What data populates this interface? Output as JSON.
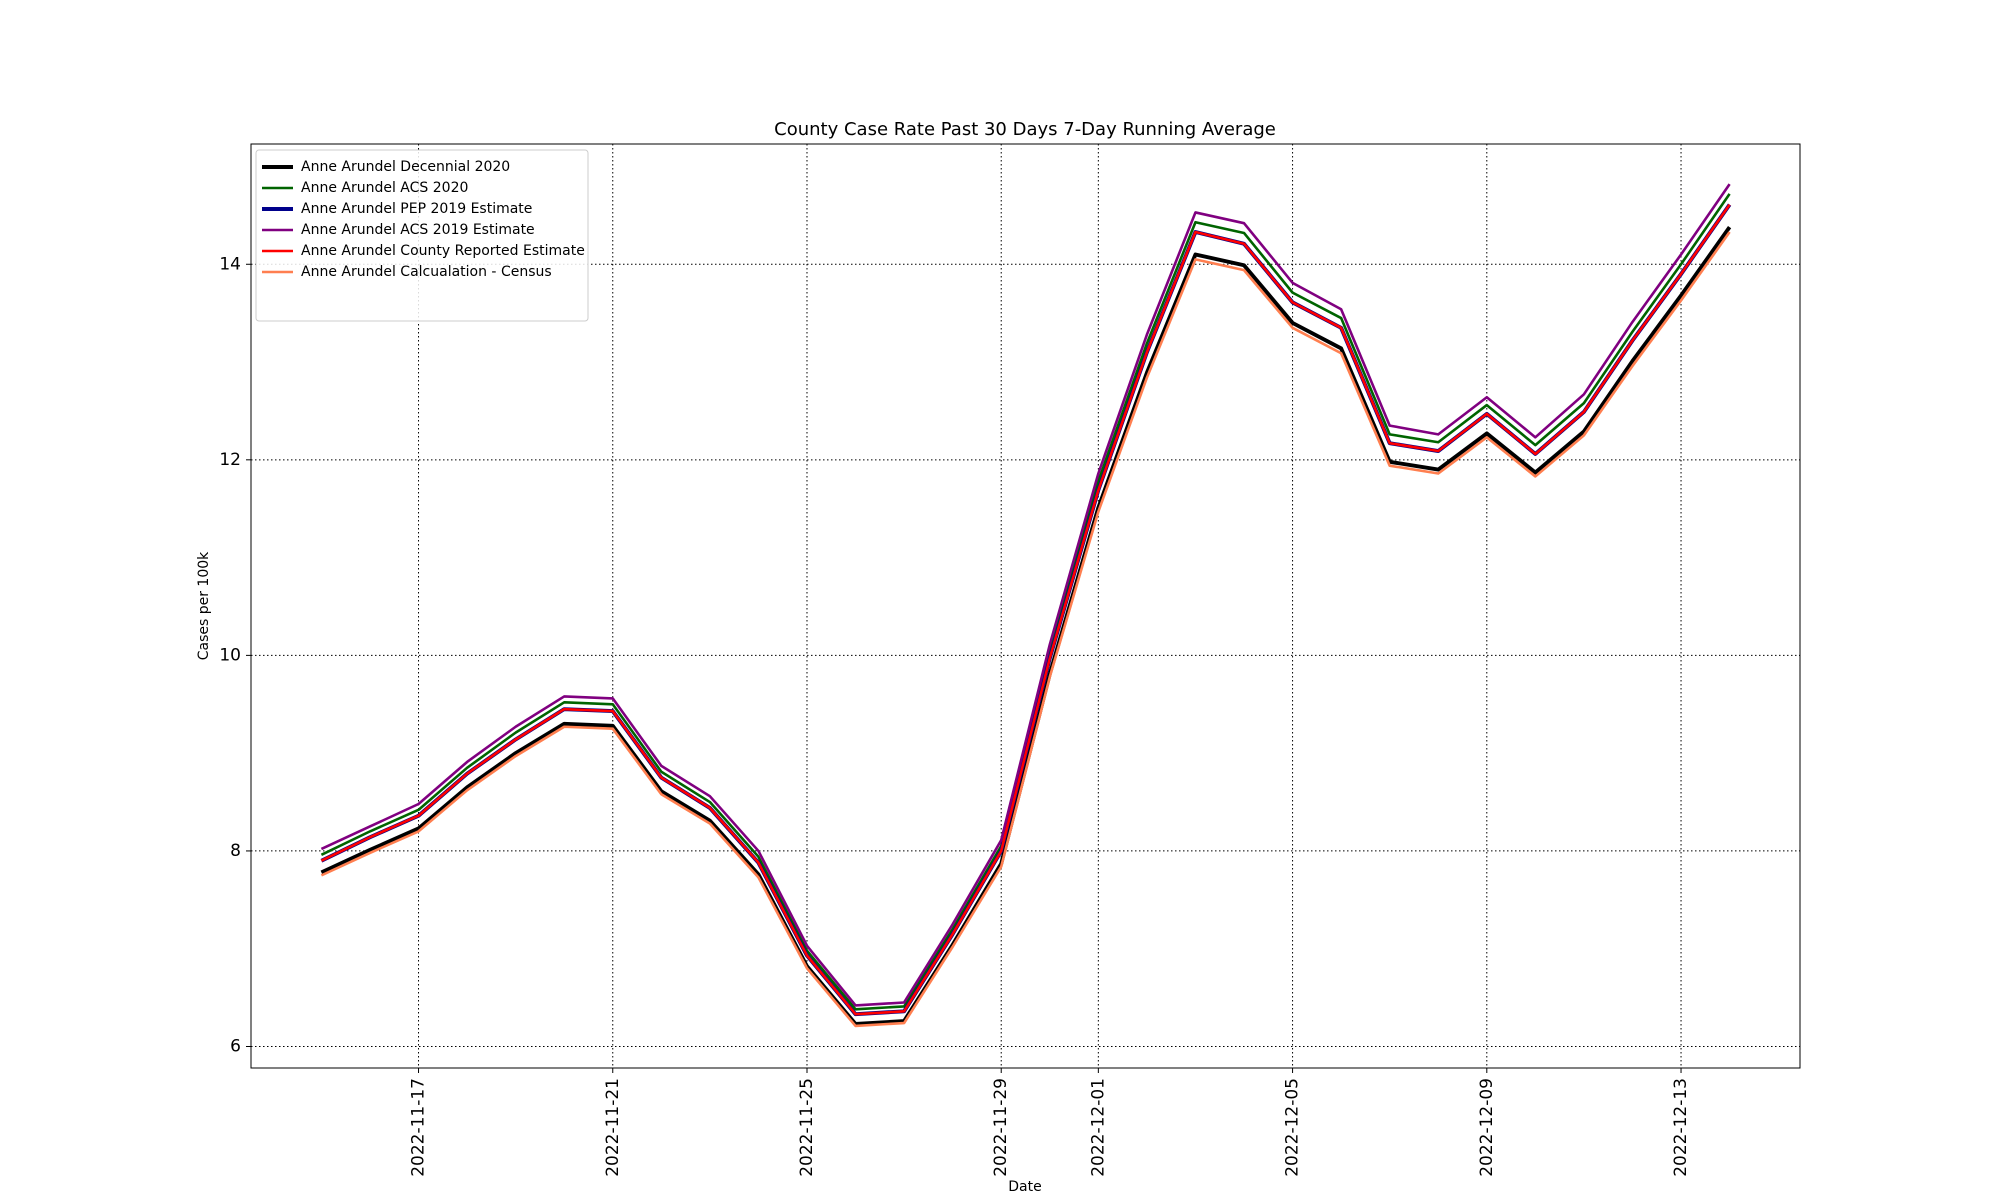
{
  "chart_data": {
    "type": "line",
    "title": "County Case Rate  Past 30 Days 7-Day Running Average",
    "xlabel": "Date",
    "ylabel": "Cases per 100k",
    "x": [
      "2022-11-15",
      "2022-11-16",
      "2022-11-17",
      "2022-11-18",
      "2022-11-19",
      "2022-11-20",
      "2022-11-21",
      "2022-11-22",
      "2022-11-23",
      "2022-11-24",
      "2022-11-25",
      "2022-11-26",
      "2022-11-27",
      "2022-11-28",
      "2022-11-29",
      "2022-11-30",
      "2022-12-01",
      "2022-12-02",
      "2022-12-03",
      "2022-12-04",
      "2022-12-05",
      "2022-12-06",
      "2022-12-07",
      "2022-12-08",
      "2022-12-09",
      "2022-12-10",
      "2022-12-11",
      "2022-12-12",
      "2022-12-13",
      "2022-12-14"
    ],
    "xticks": [
      "2022-11-17",
      "2022-11-21",
      "2022-11-25",
      "2022-11-29",
      "2022-12-01",
      "2022-12-05",
      "2022-12-09",
      "2022-12-13"
    ],
    "xlim": [
      "2022-11-15",
      "2022-12-14"
    ],
    "ylim": [
      5.78,
      15.23
    ],
    "yticks": [
      6,
      8,
      10,
      12,
      14
    ],
    "grid": true,
    "legend": "upper left",
    "series": [
      {
        "name": "Anne Arundel Decennial 2020",
        "color": "#000000",
        "width": 3,
        "values": [
          7.78,
          8.01,
          8.23,
          8.65,
          9.0,
          9.3,
          9.28,
          8.61,
          8.31,
          7.76,
          6.82,
          6.23,
          6.26,
          7.04,
          7.87,
          9.81,
          11.51,
          12.89,
          14.1,
          13.99,
          13.4,
          13.14,
          11.98,
          11.9,
          12.27,
          11.87,
          12.29,
          13.01,
          13.68,
          14.38
        ]
      },
      {
        "name": "Anne Arundel ACS 2020",
        "color": "#006400",
        "width": 2,
        "values": [
          7.96,
          8.2,
          8.42,
          8.85,
          9.21,
          9.52,
          9.5,
          8.81,
          8.5,
          7.94,
          6.98,
          6.38,
          6.41,
          7.2,
          8.05,
          10.04,
          11.78,
          13.19,
          14.43,
          14.32,
          13.71,
          13.45,
          12.26,
          12.18,
          12.56,
          12.15,
          12.58,
          13.31,
          14.0,
          14.72
        ]
      },
      {
        "name": "Anne Arundel PEP 2019 Estimate",
        "color": "#00008b",
        "width": 3,
        "values": [
          7.9,
          8.14,
          8.36,
          8.79,
          9.14,
          9.45,
          9.43,
          8.75,
          8.44,
          7.88,
          6.93,
          6.33,
          6.36,
          7.15,
          8.0,
          9.97,
          11.69,
          13.1,
          14.33,
          14.21,
          13.61,
          13.35,
          12.17,
          12.09,
          12.47,
          12.06,
          12.49,
          13.22,
          13.9,
          14.61
        ]
      },
      {
        "name": "Anne Arundel ACS 2019 Estimate",
        "color": "#800080",
        "width": 2,
        "values": [
          8.02,
          8.25,
          8.48,
          8.91,
          9.27,
          9.58,
          9.56,
          8.87,
          8.56,
          8.0,
          7.03,
          6.42,
          6.45,
          7.25,
          8.11,
          10.11,
          11.86,
          13.28,
          14.53,
          14.42,
          13.81,
          13.54,
          12.35,
          12.26,
          12.64,
          12.23,
          12.67,
          13.41,
          14.1,
          14.82
        ]
      },
      {
        "name": "Anne Arundel County Reported Estimate",
        "color": "#ff0000",
        "width": 2,
        "values": [
          7.9,
          8.14,
          8.36,
          8.79,
          9.14,
          9.45,
          9.43,
          8.75,
          8.44,
          7.88,
          6.93,
          6.33,
          6.36,
          7.15,
          8.0,
          9.97,
          11.69,
          13.1,
          14.33,
          14.21,
          13.61,
          13.35,
          12.17,
          12.09,
          12.47,
          12.06,
          12.49,
          13.22,
          13.9,
          14.61
        ]
      },
      {
        "name": "Anne Arundel Calcualation - Census",
        "color": "#ff7f50",
        "width": 2,
        "values": [
          7.75,
          7.98,
          8.2,
          8.62,
          8.97,
          9.27,
          9.25,
          8.58,
          8.28,
          7.73,
          6.8,
          6.21,
          6.24,
          7.02,
          7.84,
          9.78,
          11.47,
          12.84,
          14.05,
          13.94,
          13.35,
          13.09,
          11.94,
          11.86,
          12.23,
          11.83,
          12.25,
          12.96,
          13.63,
          14.33
        ]
      }
    ]
  }
}
